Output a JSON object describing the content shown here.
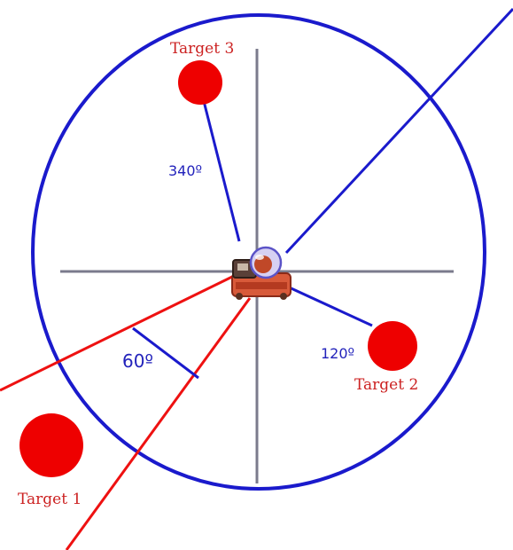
{
  "diagram": {
    "targets": [
      {
        "label": "Target 1"
      },
      {
        "label": "Target 2"
      },
      {
        "label": "Target 3"
      }
    ],
    "angles": {
      "target2": "120º",
      "target3": "340º",
      "field_of_view": "60º"
    },
    "colors": {
      "circle": "#1a1acc",
      "crosshair": "#7b7b8c",
      "field_of_view_lines": "#ee1111",
      "target_fill": "#ee0000",
      "bearing_lines": "#1a1acc"
    }
  }
}
